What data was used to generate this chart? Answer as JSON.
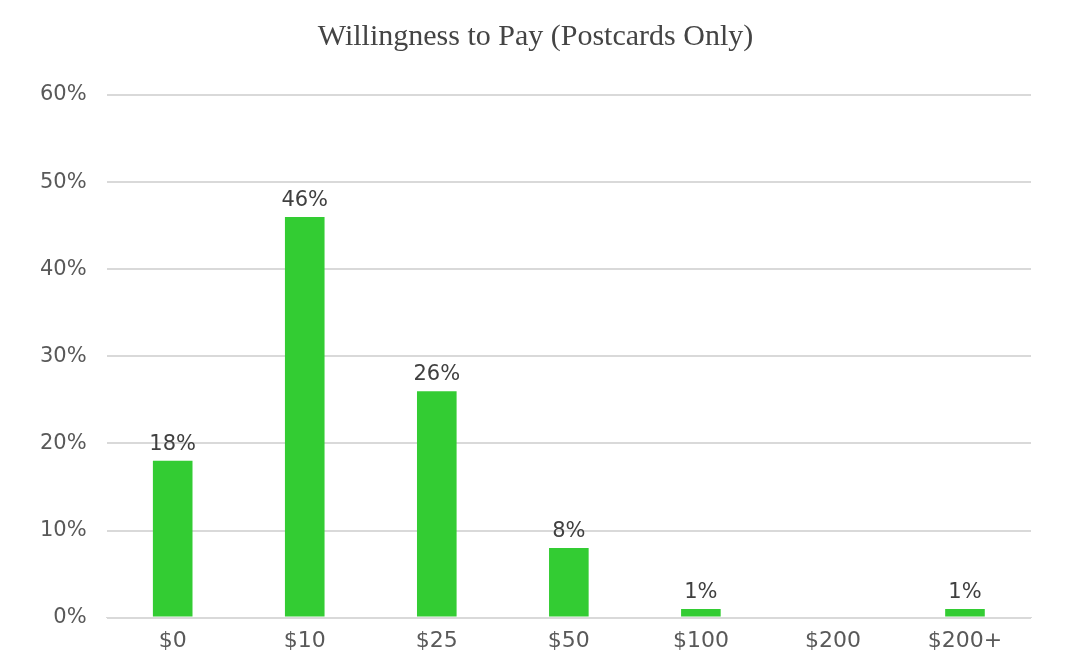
{
  "chart_data": {
    "type": "bar",
    "title": "Willingness to Pay (Postcards Only)",
    "categories": [
      "$0",
      "$10",
      "$25",
      "$50",
      "$100",
      "$200",
      "$200+"
    ],
    "values": [
      18,
      46,
      26,
      8,
      1,
      null,
      1
    ],
    "value_labels": [
      "18%",
      "46%",
      "26%",
      "8%",
      "1%",
      null,
      "1%"
    ],
    "color": "#33cc33",
    "ylim": [
      0,
      60
    ],
    "yticks": [
      {
        "value": 0,
        "label": "0%"
      },
      {
        "value": 10,
        "label": "10%"
      },
      {
        "value": 20,
        "label": "20%"
      },
      {
        "value": 30,
        "label": "30%"
      },
      {
        "value": 40,
        "label": "40%"
      },
      {
        "value": 50,
        "label": "50%"
      },
      {
        "value": 60,
        "label": "60%"
      }
    ],
    "grid": "y",
    "legend": false
  }
}
